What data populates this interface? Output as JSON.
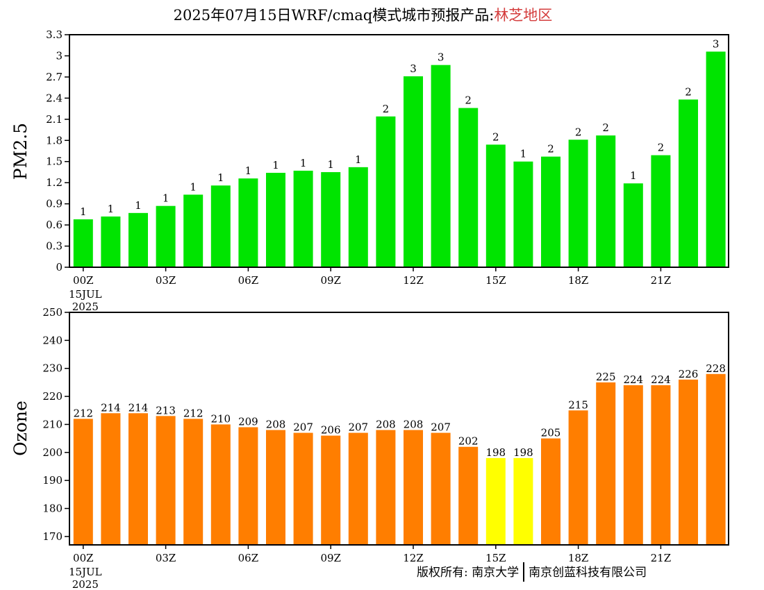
{
  "title": {
    "prefix": "2025年07月15日WRF/cmaq模式城市预报产品:",
    "region": "林芝地区"
  },
  "copyright": {
    "left": "版权所有: 南京大学",
    "right": "南京创蓝科技有限公司"
  },
  "colors": {
    "pm25_bar": "#00e400",
    "ozone_bar": "#ff7e00",
    "ozone_bar_highlight": "#ffff00",
    "title_region": "#d43c3c"
  },
  "chart_data": [
    {
      "type": "bar",
      "ylabel": "PM2.5",
      "xlabel": "",
      "x_ticks": [
        "00Z",
        "03Z",
        "06Z",
        "09Z",
        "12Z",
        "15Z",
        "18Z",
        "21Z"
      ],
      "x_tick_sub": [
        "15JUL",
        "2025"
      ],
      "ylim": [
        0,
        3.3
      ],
      "y_ticks": [
        "0",
        "0.3",
        "0.6",
        "0.9",
        "1.2",
        "1.5",
        "1.8",
        "2.1",
        "2.4",
        "2.7",
        "3",
        "3.3"
      ],
      "values": [
        0.68,
        0.72,
        0.77,
        0.87,
        1.03,
        1.16,
        1.26,
        1.34,
        1.37,
        1.35,
        1.42,
        2.14,
        2.71,
        2.87,
        2.26,
        1.74,
        1.5,
        1.57,
        1.81,
        1.87,
        1.19,
        1.59,
        2.38,
        3.06
      ],
      "labels": [
        "1",
        "1",
        "1",
        "1",
        "1",
        "1",
        "1",
        "1",
        "1",
        "1",
        "1",
        "2",
        "3",
        "3",
        "2",
        "2",
        "1",
        "2",
        "2",
        "2",
        "1",
        "2",
        "2",
        "3"
      ],
      "bar_colors": [
        "#00e400",
        "#00e400",
        "#00e400",
        "#00e400",
        "#00e400",
        "#00e400",
        "#00e400",
        "#00e400",
        "#00e400",
        "#00e400",
        "#00e400",
        "#00e400",
        "#00e400",
        "#00e400",
        "#00e400",
        "#00e400",
        "#00e400",
        "#00e400",
        "#00e400",
        "#00e400",
        "#00e400",
        "#00e400",
        "#00e400",
        "#00e400"
      ]
    },
    {
      "type": "bar",
      "ylabel": "Ozone",
      "xlabel": "",
      "x_ticks": [
        "00Z",
        "03Z",
        "06Z",
        "09Z",
        "12Z",
        "15Z",
        "18Z",
        "21Z"
      ],
      "x_tick_sub": [
        "15JUL",
        "2025"
      ],
      "ylim": [
        167,
        250
      ],
      "y_ticks": [
        "170",
        "180",
        "190",
        "200",
        "210",
        "220",
        "230",
        "240",
        "250"
      ],
      "values": [
        212,
        214,
        214,
        213,
        212,
        210,
        209,
        208,
        207,
        206,
        207,
        208,
        208,
        207,
        202,
        198,
        198,
        205,
        215,
        225,
        224,
        224,
        226,
        228
      ],
      "labels": [
        "212",
        "214",
        "214",
        "213",
        "212",
        "210",
        "209",
        "208",
        "207",
        "206",
        "207",
        "208",
        "208",
        "207",
        "202",
        "198",
        "198",
        "205",
        "215",
        "225",
        "224",
        "224",
        "226",
        "228"
      ],
      "bar_colors": [
        "#ff7e00",
        "#ff7e00",
        "#ff7e00",
        "#ff7e00",
        "#ff7e00",
        "#ff7e00",
        "#ff7e00",
        "#ff7e00",
        "#ff7e00",
        "#ff7e00",
        "#ff7e00",
        "#ff7e00",
        "#ff7e00",
        "#ff7e00",
        "#ff7e00",
        "#ffff00",
        "#ffff00",
        "#ff7e00",
        "#ff7e00",
        "#ff7e00",
        "#ff7e00",
        "#ff7e00",
        "#ff7e00",
        "#ff7e00"
      ]
    }
  ]
}
